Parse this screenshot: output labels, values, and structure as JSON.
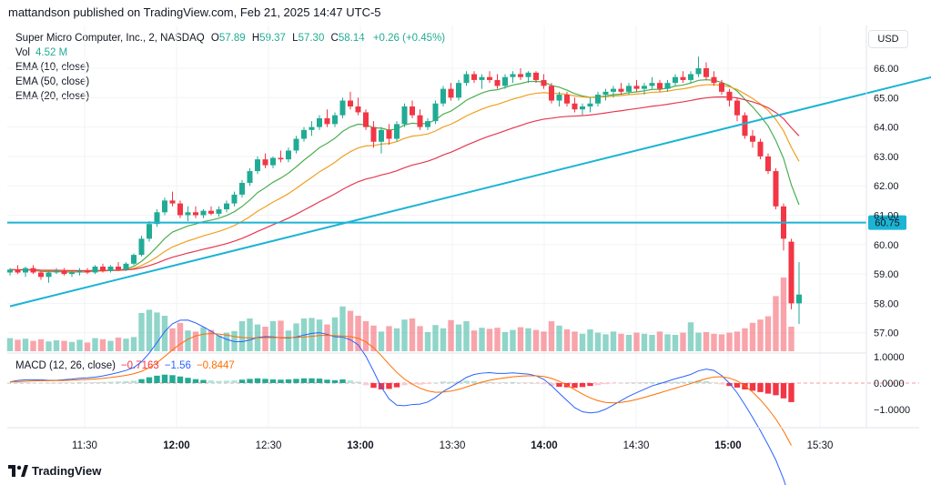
{
  "header": {
    "publisher_line": "mattandson published on TradingView.com, Feb 21, 2025 14:47 UTC-5"
  },
  "legend": {
    "symbol": "Super Micro Computer, Inc., 2, NASDAQ",
    "o_label": "O",
    "o_val": "57.89",
    "h_label": "H",
    "h_val": "59.37",
    "l_label": "L",
    "l_val": "57.30",
    "c_label": "C",
    "c_val": "58.14",
    "change": "+0.26 (+0.45%)",
    "vol_label": "Vol",
    "vol_val": "4.52 M",
    "ema10": "EMA (10, close)",
    "ema50": "EMA (50, close)",
    "ema20": "EMA (20, close)"
  },
  "currency": "USD",
  "macd_legend": {
    "label": "MACD (12, 26, close)",
    "hist": "−0.7163",
    "macd": "−1.56",
    "signal": "−0.8447"
  },
  "footer": {
    "brand": "TradingView"
  },
  "colors": {
    "up": "#22ab94",
    "down": "#f23645",
    "trend": "#1bb4d4",
    "ema10": "#4caf50",
    "ema20": "#e53950",
    "ema50": "#f0a020",
    "macd": "#2962ff",
    "signal": "#ff6d00"
  },
  "chart_data": {
    "type": "candlestick",
    "price_axis": {
      "ticks": [
        "66.00",
        "65.00",
        "64.00",
        "63.00",
        "62.00",
        "61.00",
        "60.00",
        "59.00",
        "58.00",
        "57.00"
      ],
      "range": [
        56.5,
        66.7
      ]
    },
    "current_price_label": "60.75",
    "horizontal_line": 60.75,
    "time_axis": {
      "ticks": [
        "11:30",
        "12:00",
        "12:30",
        "13:00",
        "13:30",
        "14:00",
        "14:30",
        "15:00",
        "15:30"
      ]
    },
    "macd_axis": {
      "ticks": [
        "1.0000",
        "0.0000",
        "−1.0000"
      ],
      "range": [
        -1.75,
        1.15
      ]
    },
    "trendline": {
      "start": [
        0,
        57.9
      ],
      "end": [
        139,
        67.0
      ]
    },
    "candles": [
      [
        59.05,
        59.2,
        58.95,
        59.15
      ],
      [
        59.15,
        59.3,
        59.0,
        59.05
      ],
      [
        59.05,
        59.25,
        58.9,
        59.2
      ],
      [
        59.2,
        59.3,
        59.0,
        59.05
      ],
      [
        59.05,
        59.1,
        58.8,
        58.9
      ],
      [
        58.9,
        59.1,
        58.7,
        59.05
      ],
      [
        59.05,
        59.2,
        59.0,
        59.1
      ],
      [
        59.1,
        59.2,
        58.95,
        59.0
      ],
      [
        59.0,
        59.1,
        58.9,
        59.05
      ],
      [
        59.05,
        59.2,
        58.95,
        59.1
      ],
      [
        59.1,
        59.2,
        59.0,
        59.05
      ],
      [
        59.05,
        59.3,
        59.0,
        59.25
      ],
      [
        59.25,
        59.35,
        59.05,
        59.1
      ],
      [
        59.1,
        59.3,
        59.05,
        59.25
      ],
      [
        59.25,
        59.4,
        59.1,
        59.15
      ],
      [
        59.15,
        59.4,
        59.1,
        59.35
      ],
      [
        59.35,
        59.7,
        59.3,
        59.65
      ],
      [
        59.65,
        60.3,
        59.6,
        60.2
      ],
      [
        60.2,
        60.8,
        60.1,
        60.7
      ],
      [
        60.7,
        61.2,
        60.6,
        61.1
      ],
      [
        61.1,
        61.6,
        61.0,
        61.5
      ],
      [
        61.5,
        61.8,
        61.3,
        61.4
      ],
      [
        61.4,
        61.5,
        60.9,
        61.0
      ],
      [
        61.0,
        61.3,
        60.8,
        61.1
      ],
      [
        61.1,
        61.3,
        60.9,
        61.0
      ],
      [
        61.0,
        61.2,
        60.9,
        61.15
      ],
      [
        61.15,
        61.3,
        61.0,
        61.05
      ],
      [
        61.05,
        61.3,
        60.95,
        61.2
      ],
      [
        61.2,
        61.5,
        61.1,
        61.4
      ],
      [
        61.4,
        61.8,
        61.3,
        61.7
      ],
      [
        61.7,
        62.2,
        61.6,
        62.1
      ],
      [
        62.1,
        62.6,
        62.0,
        62.5
      ],
      [
        62.5,
        63.0,
        62.4,
        62.9
      ],
      [
        62.9,
        63.1,
        62.6,
        62.7
      ],
      [
        62.7,
        63.0,
        62.6,
        62.95
      ],
      [
        62.95,
        63.2,
        62.8,
        62.9
      ],
      [
        62.9,
        63.3,
        62.8,
        63.2
      ],
      [
        63.2,
        63.7,
        63.1,
        63.6
      ],
      [
        63.6,
        64.0,
        63.5,
        63.9
      ],
      [
        63.9,
        64.2,
        63.7,
        64.0
      ],
      [
        64.0,
        64.4,
        63.9,
        64.3
      ],
      [
        64.3,
        64.6,
        64.0,
        64.1
      ],
      [
        64.1,
        64.5,
        64.0,
        64.4
      ],
      [
        64.4,
        65.0,
        64.3,
        64.9
      ],
      [
        64.9,
        65.2,
        64.6,
        64.7
      ],
      [
        64.7,
        65.0,
        64.4,
        64.5
      ],
      [
        64.5,
        64.6,
        63.9,
        64.0
      ],
      [
        64.0,
        64.2,
        63.3,
        63.5
      ],
      [
        63.5,
        64.0,
        63.1,
        63.9
      ],
      [
        63.9,
        64.1,
        63.4,
        63.6
      ],
      [
        63.6,
        64.2,
        63.5,
        64.1
      ],
      [
        64.1,
        64.8,
        64.0,
        64.7
      ],
      [
        64.7,
        64.9,
        64.3,
        64.4
      ],
      [
        64.4,
        64.6,
        63.9,
        64.0
      ],
      [
        64.0,
        64.3,
        63.9,
        64.2
      ],
      [
        64.2,
        64.9,
        64.1,
        64.8
      ],
      [
        64.8,
        65.4,
        64.7,
        65.3
      ],
      [
        65.3,
        65.5,
        64.9,
        65.0
      ],
      [
        65.0,
        65.6,
        64.9,
        65.5
      ],
      [
        65.5,
        65.9,
        65.4,
        65.8
      ],
      [
        65.8,
        65.9,
        65.5,
        65.6
      ],
      [
        65.6,
        65.8,
        65.3,
        65.7
      ],
      [
        65.7,
        65.9,
        65.5,
        65.6
      ],
      [
        65.6,
        65.8,
        65.3,
        65.4
      ],
      [
        65.4,
        65.8,
        65.3,
        65.7
      ],
      [
        65.7,
        65.9,
        65.5,
        65.8
      ],
      [
        65.8,
        66.0,
        65.6,
        65.7
      ],
      [
        65.7,
        65.9,
        65.5,
        65.85
      ],
      [
        65.85,
        65.9,
        65.5,
        65.6
      ],
      [
        65.6,
        65.8,
        65.3,
        65.4
      ],
      [
        65.4,
        65.5,
        64.8,
        64.9
      ],
      [
        64.9,
        65.2,
        64.7,
        65.1
      ],
      [
        65.1,
        65.2,
        64.7,
        64.8
      ],
      [
        64.8,
        65.0,
        64.5,
        64.6
      ],
      [
        64.6,
        64.8,
        64.4,
        64.7
      ],
      [
        64.7,
        65.0,
        64.5,
        64.8
      ],
      [
        64.8,
        65.2,
        64.7,
        65.1
      ],
      [
        65.1,
        65.3,
        64.9,
        65.2
      ],
      [
        65.2,
        65.4,
        65.0,
        65.3
      ],
      [
        65.3,
        65.5,
        65.1,
        65.2
      ],
      [
        65.2,
        65.5,
        65.1,
        65.4
      ],
      [
        65.4,
        65.6,
        65.2,
        65.3
      ],
      [
        65.3,
        65.5,
        65.1,
        65.4
      ],
      [
        65.4,
        65.7,
        65.3,
        65.5
      ],
      [
        65.5,
        65.6,
        65.2,
        65.3
      ],
      [
        65.3,
        65.6,
        65.2,
        65.5
      ],
      [
        65.5,
        65.8,
        65.4,
        65.7
      ],
      [
        65.7,
        65.9,
        65.5,
        65.6
      ],
      [
        65.6,
        65.9,
        65.5,
        65.8
      ],
      [
        65.8,
        66.4,
        65.7,
        66.0
      ],
      [
        66.0,
        66.2,
        65.6,
        65.7
      ],
      [
        65.7,
        65.9,
        65.4,
        65.5
      ],
      [
        65.5,
        65.6,
        65.1,
        65.2
      ],
      [
        65.2,
        65.3,
        64.7,
        64.9
      ],
      [
        64.9,
        65.0,
        64.2,
        64.4
      ],
      [
        64.4,
        64.5,
        63.6,
        63.7
      ],
      [
        63.7,
        63.9,
        63.3,
        63.5
      ],
      [
        63.5,
        63.6,
        62.9,
        63.0
      ],
      [
        63.0,
        63.1,
        62.4,
        62.5
      ],
      [
        62.5,
        62.6,
        61.2,
        61.3
      ],
      [
        61.3,
        61.4,
        59.8,
        60.2
      ],
      [
        60.1,
        60.2,
        57.8,
        58.0
      ],
      [
        58.0,
        59.4,
        57.3,
        58.3
      ]
    ],
    "volume_range": [
      0,
      22000000
    ],
    "volumes": [
      2.4,
      2.1,
      2.3,
      1.9,
      2.2,
      1.8,
      2.0,
      1.9,
      1.7,
      2.1,
      1.6,
      2.4,
      2.2,
      1.9,
      2.5,
      2.3,
      2.6,
      7.0,
      7.6,
      7.1,
      6.5,
      4.2,
      5.2,
      3.8,
      3.6,
      4.4,
      3.9,
      2.9,
      3.4,
      3.7,
      5.5,
      6.0,
      4.9,
      4.5,
      5.5,
      5.6,
      3.8,
      5.1,
      6.0,
      6.1,
      5.8,
      4.9,
      6.2,
      8.2,
      7.4,
      6.5,
      5.5,
      4.7,
      3.6,
      4.6,
      4.2,
      5.8,
      6.0,
      4.6,
      3.5,
      4.8,
      4.2,
      5.7,
      4.9,
      5.5,
      3.8,
      4.3,
      4.1,
      4.3,
      3.5,
      3.9,
      4.4,
      4.2,
      3.9,
      3.6,
      5.5,
      4.7,
      4.0,
      3.6,
      3.2,
      4.0,
      3.4,
      3.1,
      3.6,
      3.2,
      3.0,
      3.4,
      3.2,
      3.0,
      3.6,
      3.1,
      3.0,
      3.4,
      5.3,
      3.4,
      3.5,
      3.2,
      3.1,
      3.4,
      3.6,
      4.2,
      5.2,
      5.8,
      6.4,
      10.1,
      13.5,
      4.5
    ],
    "vol_unit": "M",
    "macd_hist": [
      0.02,
      0.03,
      0.02,
      0.01,
      0.01,
      0.0,
      0.01,
      0.02,
      0.02,
      0.03,
      0.02,
      0.03,
      0.04,
      0.05,
      0.06,
      0.07,
      0.09,
      0.15,
      0.22,
      0.28,
      0.32,
      0.3,
      0.25,
      0.2,
      0.15,
      0.12,
      0.1,
      0.08,
      0.09,
      0.1,
      0.13,
      0.16,
      0.18,
      0.16,
      0.14,
      0.13,
      0.14,
      0.16,
      0.18,
      0.18,
      0.17,
      0.13,
      0.11,
      0.14,
      0.1,
      0.05,
      -0.08,
      -0.18,
      -0.24,
      -0.22,
      -0.16,
      -0.08,
      -0.05,
      -0.06,
      -0.03,
      0.02,
      0.06,
      0.05,
      0.07,
      0.09,
      0.07,
      0.05,
      0.04,
      0.02,
      0.03,
      0.04,
      0.02,
      0.02,
      0.0,
      -0.04,
      -0.1,
      -0.14,
      -0.16,
      -0.18,
      -0.15,
      -0.11,
      -0.08,
      -0.04,
      -0.01,
      0.01,
      0.02,
      0.02,
      0.03,
      0.04,
      0.03,
      0.04,
      0.05,
      0.05,
      0.06,
      0.09,
      0.07,
      0.02,
      -0.05,
      -0.11,
      -0.17,
      -0.24,
      -0.29,
      -0.34,
      -0.4,
      -0.46,
      -0.58,
      -0.72
    ]
  }
}
